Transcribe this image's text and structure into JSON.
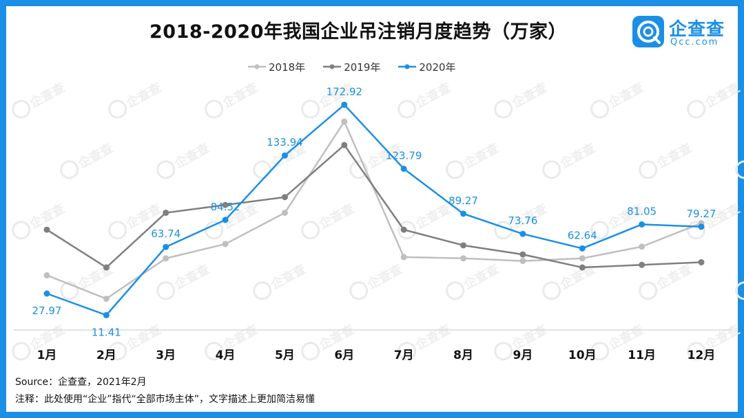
{
  "title": "2018-2020年我国企业吊注销月度趋势（万家）",
  "brand": {
    "name": "企查查",
    "sub": "Qcc.com",
    "color": "#1b8fe6"
  },
  "source": "Source：企查查，2021年2月",
  "footnote": "注释：此处使用“企业”指代“全部市场主体”，文字描述上更加简洁易懂",
  "frame_color": "#1b8fe6",
  "watermark_text": "企查查",
  "chart_data": {
    "type": "line",
    "categories": [
      "1月",
      "2月",
      "3月",
      "4月",
      "5月",
      "6月",
      "7月",
      "8月",
      "9月",
      "10月",
      "11月",
      "12月"
    ],
    "ylim": [
      0,
      190
    ],
    "grid": false,
    "legend_position": "top-center",
    "series": [
      {
        "name": "2018年",
        "color": "#bfbfbf",
        "show_labels": false,
        "values": [
          42,
          24,
          55,
          66,
          90,
          160,
          56,
          55,
          53,
          55,
          64,
          82
        ]
      },
      {
        "name": "2019年",
        "color": "#7f7f7f",
        "show_labels": false,
        "values": [
          77,
          48,
          90,
          96,
          102,
          142,
          77,
          65,
          58,
          48,
          50,
          52
        ]
      },
      {
        "name": "2020年",
        "color": "#1b8fe6",
        "show_labels": true,
        "values": [
          27.97,
          11.41,
          63.74,
          84.52,
          133.94,
          172.92,
          123.79,
          89.27,
          73.76,
          62.64,
          81.05,
          79.27
        ]
      }
    ]
  }
}
